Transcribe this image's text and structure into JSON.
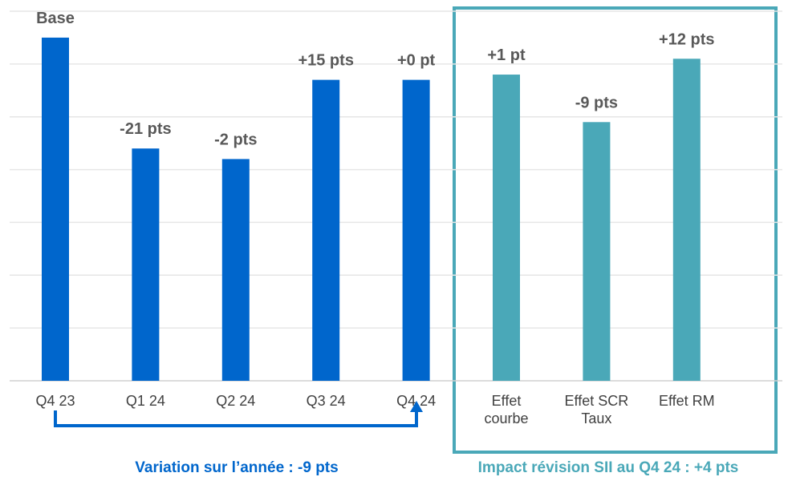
{
  "chart_data": {
    "type": "bar",
    "categories": [
      "Q4 23",
      "Q1 24",
      "Q2 24",
      "Q3 24",
      "Q4 24",
      "Effet courbe",
      "Effet SCR Taux",
      "Effet RM"
    ],
    "values": [
      65,
      44,
      42,
      57,
      57,
      58,
      49,
      61
    ],
    "annotations": [
      "Base",
      "-21 pts",
      "-2 pts",
      "+15 pts",
      "+0 pt",
      "+1 pt",
      "-9 pts",
      "+12 pts"
    ],
    "colors": [
      "#0066cc",
      "#0066cc",
      "#0066cc",
      "#0066cc",
      "#0066cc",
      "#4aa8b8",
      "#4aa8b8",
      "#4aa8b8"
    ],
    "ylim": [
      0,
      70
    ],
    "yticks": [
      0,
      10,
      20,
      30,
      40,
      50,
      60,
      70
    ],
    "grid": true,
    "bracket_label": "Variation sur l’année : -9 pts",
    "box_label": "Impact révision SII au Q4 24 : +4 pts"
  }
}
